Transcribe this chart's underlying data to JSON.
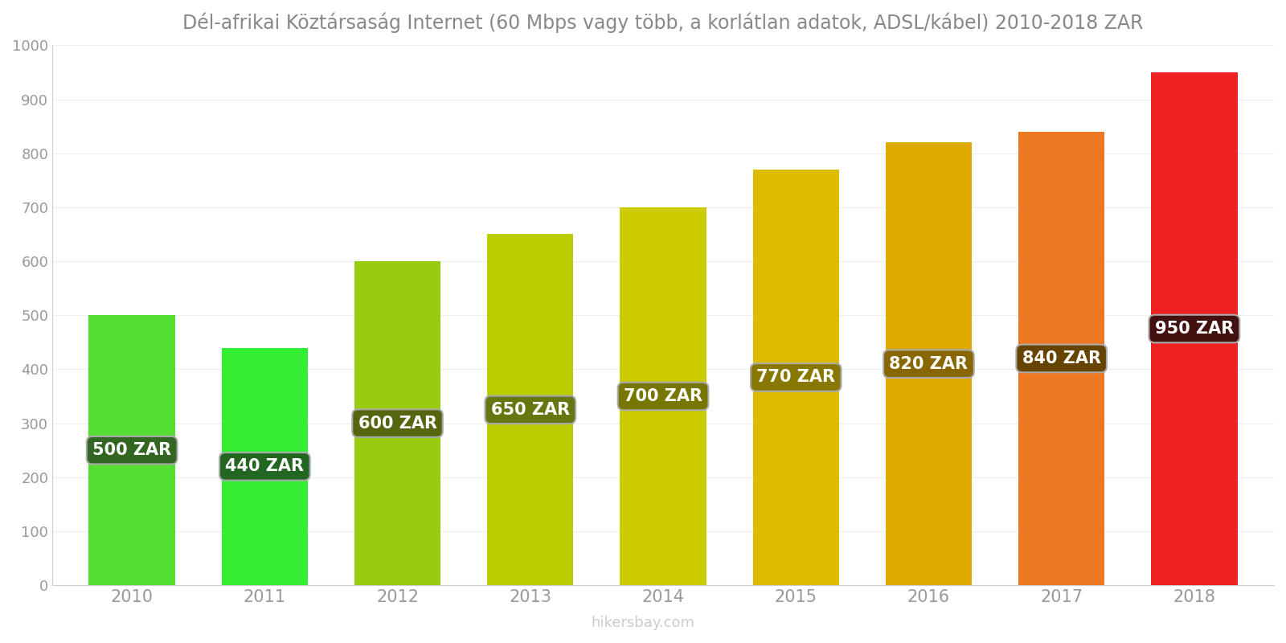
{
  "title": "Dél-afrikai Köztársaság Internet (60 Mbps vagy több, a korlátlan adatok, ADSL/kábel) 2010-2018 ZAR",
  "years": [
    2010,
    2011,
    2012,
    2013,
    2014,
    2015,
    2016,
    2017,
    2018
  ],
  "values": [
    500,
    440,
    600,
    650,
    700,
    770,
    820,
    840,
    950
  ],
  "bar_colors": [
    "#55dd33",
    "#33ee33",
    "#99cc11",
    "#bbcc00",
    "#cccc00",
    "#ddbb00",
    "#ddaa00",
    "#ee7722",
    "#ee2222"
  ],
  "label_bg_colors": [
    "#336622",
    "#226622",
    "#556611",
    "#667711",
    "#777700",
    "#887700",
    "#886600",
    "#664400",
    "#441111"
  ],
  "label_text_color": "#ffffff",
  "ylim": [
    0,
    1000
  ],
  "yticks": [
    0,
    100,
    200,
    300,
    400,
    500,
    600,
    700,
    800,
    900,
    1000
  ],
  "watermark": "hikersbay.com",
  "background_color": "#ffffff",
  "title_color": "#888888",
  "axis_color": "#cccccc",
  "tick_color": "#999999",
  "bar_width": 0.65
}
